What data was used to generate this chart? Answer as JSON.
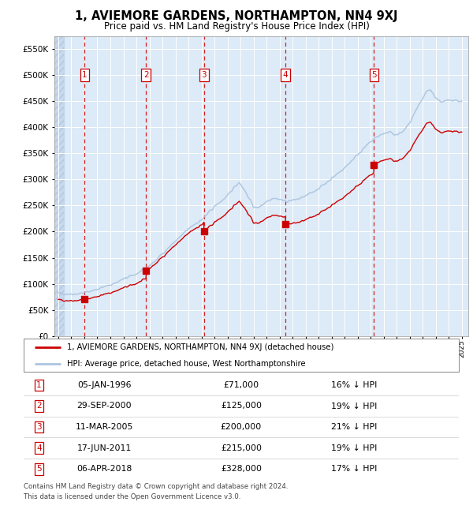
{
  "title": "1, AVIEMORE GARDENS, NORTHAMPTON, NN4 9XJ",
  "subtitle": "Price paid vs. HM Land Registry's House Price Index (HPI)",
  "legend_line1": "1, AVIEMORE GARDENS, NORTHAMPTON, NN4 9XJ (detached house)",
  "legend_line2": "HPI: Average price, detached house, West Northamptonshire",
  "footer1": "Contains HM Land Registry data © Crown copyright and database right 2024.",
  "footer2": "This data is licensed under the Open Government Licence v3.0.",
  "transactions": [
    {
      "num": 1,
      "date": "05-JAN-1996",
      "price": 71000,
      "pct": "16% ↓ HPI",
      "year": 1996.03
    },
    {
      "num": 2,
      "date": "29-SEP-2000",
      "price": 125000,
      "pct": "19% ↓ HPI",
      "year": 2000.75
    },
    {
      "num": 3,
      "date": "11-MAR-2005",
      "price": 200000,
      "pct": "21% ↓ HPI",
      "year": 2005.19
    },
    {
      "num": 4,
      "date": "17-JUN-2011",
      "price": 215000,
      "pct": "19% ↓ HPI",
      "year": 2011.46
    },
    {
      "num": 5,
      "date": "06-APR-2018",
      "price": 328000,
      "pct": "17% ↓ HPI",
      "year": 2018.26
    }
  ],
  "hpi_color": "#aac4e0",
  "price_color": "#cc0000",
  "dashed_color": "#cc0000",
  "plot_bg": "#ddeaf7",
  "hatch_color": "#b8cfe8",
  "ylim": [
    0,
    575000
  ],
  "xlim_start": 1993.7,
  "xlim_end": 2025.5
}
